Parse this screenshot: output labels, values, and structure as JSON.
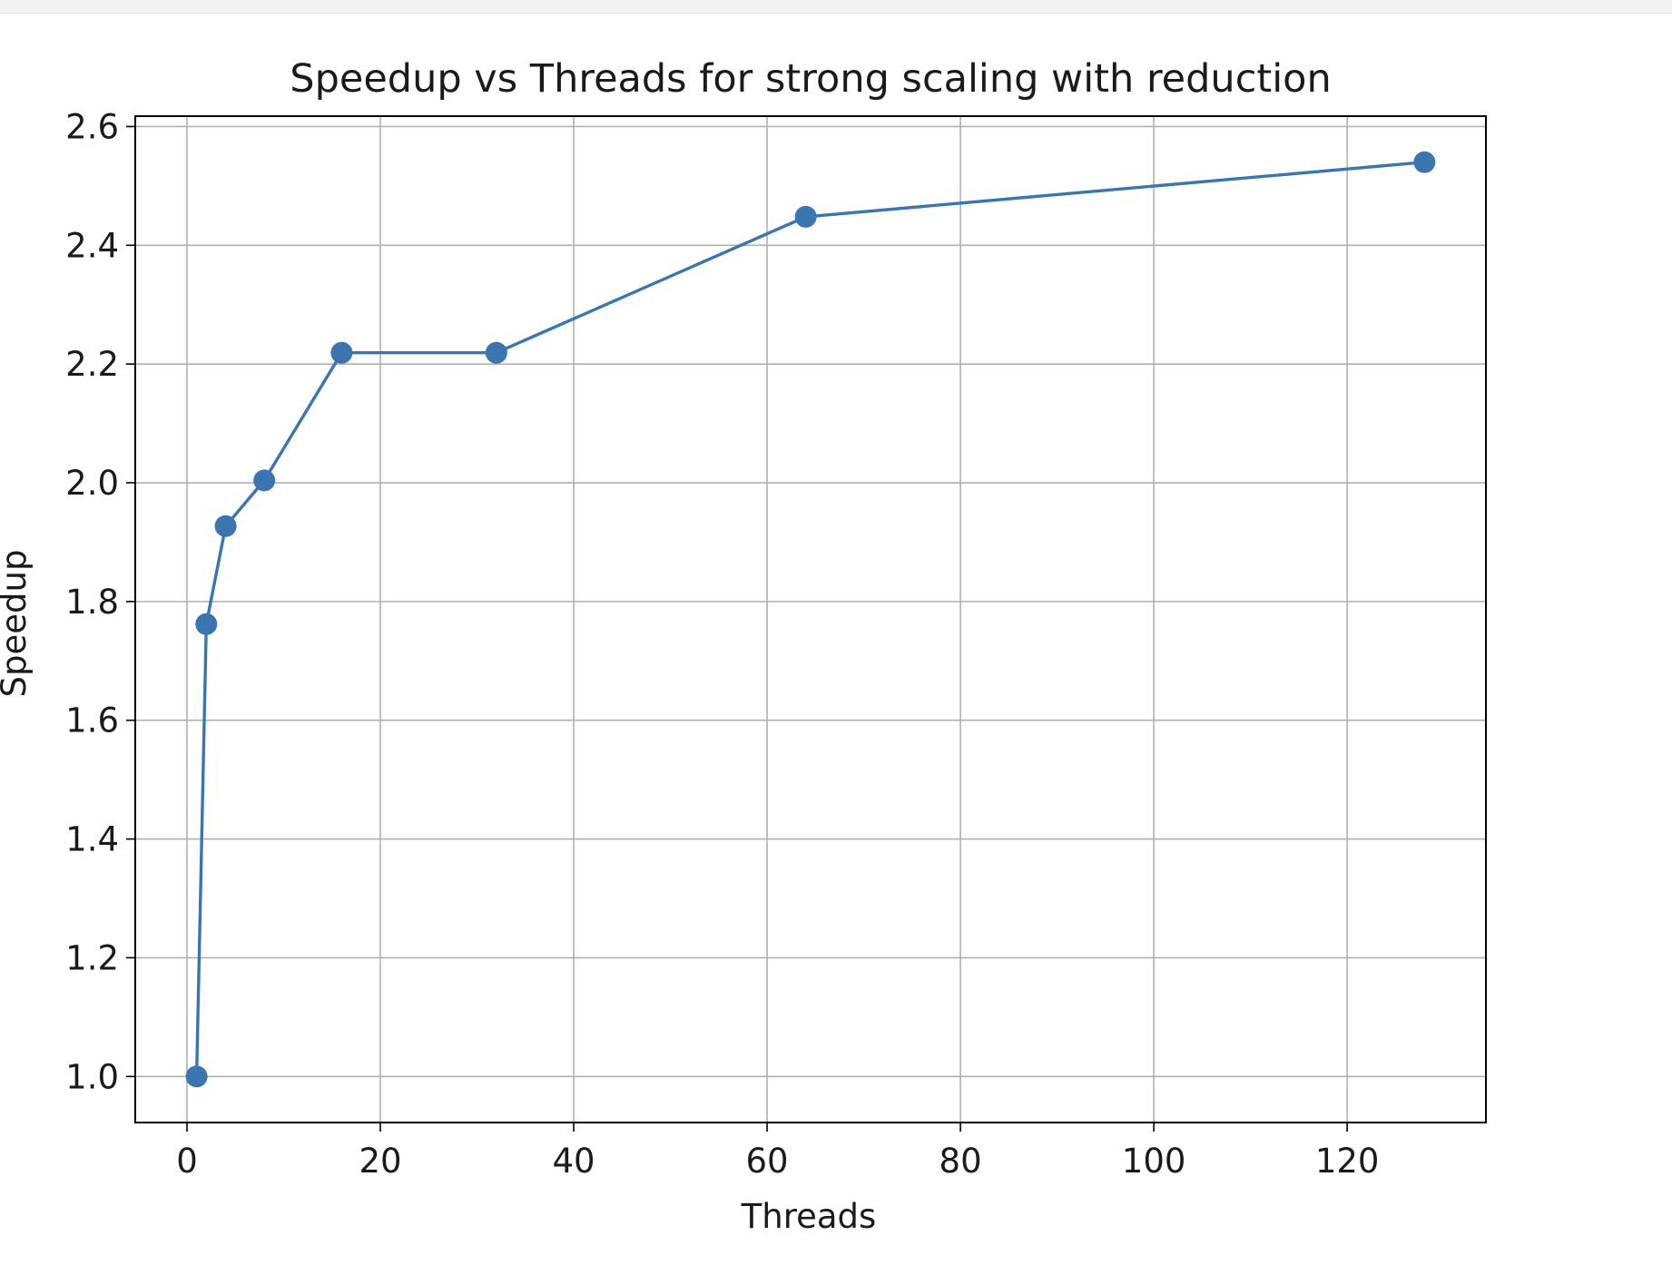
{
  "chart_data": {
    "type": "line",
    "title": "Speedup vs Threads for strong scaling with reduction",
    "xlabel": "Threads",
    "ylabel": "Speedup",
    "xlim": [
      -5.35,
      134.35
    ],
    "ylim": [
      0.9225,
      2.6175
    ],
    "x_ticks": [
      0,
      20,
      40,
      60,
      80,
      100,
      120
    ],
    "y_ticks": [
      1.0,
      1.2,
      1.4,
      1.6,
      1.8,
      2.0,
      2.2,
      2.4,
      2.6
    ],
    "x_tick_labels": [
      "0",
      "20",
      "40",
      "60",
      "80",
      "100",
      "120"
    ],
    "y_tick_labels": [
      "1.0",
      "1.2",
      "1.4",
      "1.6",
      "1.8",
      "2.0",
      "2.2",
      "2.4",
      "2.6"
    ],
    "grid": true,
    "series": [
      {
        "color": "#3a75b0",
        "marker": "circle",
        "x": [
          1,
          2,
          4,
          8,
          16,
          32,
          64,
          128
        ],
        "y": [
          1.0,
          1.762,
          1.927,
          2.004,
          2.219,
          2.219,
          2.448,
          2.54
        ]
      }
    ]
  }
}
